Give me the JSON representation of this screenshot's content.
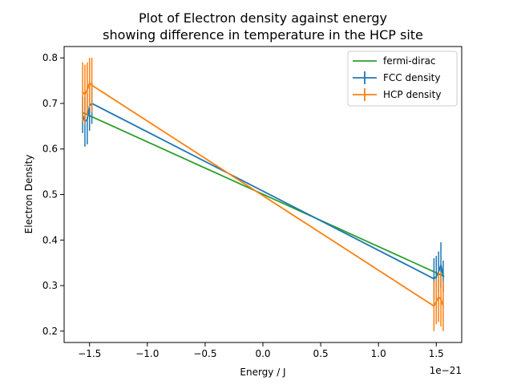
{
  "chart_data": {
    "type": "line",
    "title_line1": "Plot of Electron density against energy",
    "title_line2": "showing difference in temperature in the HCP site",
    "xlabel": "Energy / J",
    "ylabel": "Electron Density",
    "x_offset_label": "1e−21",
    "xlim": [
      -1.72,
      1.72
    ],
    "ylim": [
      0.175,
      0.825
    ],
    "xticks": [
      -1.5,
      -1.0,
      -0.5,
      0.0,
      0.5,
      1.0,
      1.5
    ],
    "xtick_labels": [
      "−1.5",
      "−1.0",
      "−0.5",
      "0.0",
      "0.5",
      "1.0",
      "1.5"
    ],
    "yticks": [
      0.2,
      0.3,
      0.4,
      0.5,
      0.6,
      0.7,
      0.8
    ],
    "ytick_labels": [
      "0.2",
      "0.3",
      "0.4",
      "0.5",
      "0.6",
      "0.7",
      "0.8"
    ],
    "legend_position": "top-right",
    "grid": false,
    "series": [
      {
        "name": "fermi-dirac",
        "color": "#2ca02c",
        "style": "line",
        "x": [
          -1.56,
          1.57
        ],
        "y": [
          0.68,
          0.32
        ]
      },
      {
        "name": "FCC density",
        "color": "#1f77b4",
        "style": "errorbar",
        "x": [
          -1.56,
          -1.54,
          -1.52,
          -1.5,
          -1.48,
          1.48,
          1.5,
          1.52,
          1.54,
          1.56
        ],
        "y": [
          0.675,
          0.66,
          0.665,
          0.695,
          0.7,
          0.315,
          0.32,
          0.33,
          0.345,
          0.32
        ],
        "yerr": [
          0.04,
          0.055,
          0.055,
          0.055,
          0.045,
          0.045,
          0.045,
          0.045,
          0.05,
          0.035
        ]
      },
      {
        "name": "HCP density",
        "color": "#ff7f0e",
        "style": "errorbar",
        "x": [
          -1.56,
          -1.54,
          -1.52,
          -1.5,
          -1.48,
          1.48,
          1.5,
          1.52,
          1.54,
          1.56
        ],
        "y": [
          0.725,
          0.72,
          0.73,
          0.745,
          0.74,
          0.255,
          0.265,
          0.275,
          0.27,
          0.255
        ],
        "yerr": [
          0.065,
          0.065,
          0.06,
          0.055,
          0.06,
          0.055,
          0.05,
          0.055,
          0.06,
          0.055
        ]
      }
    ]
  }
}
